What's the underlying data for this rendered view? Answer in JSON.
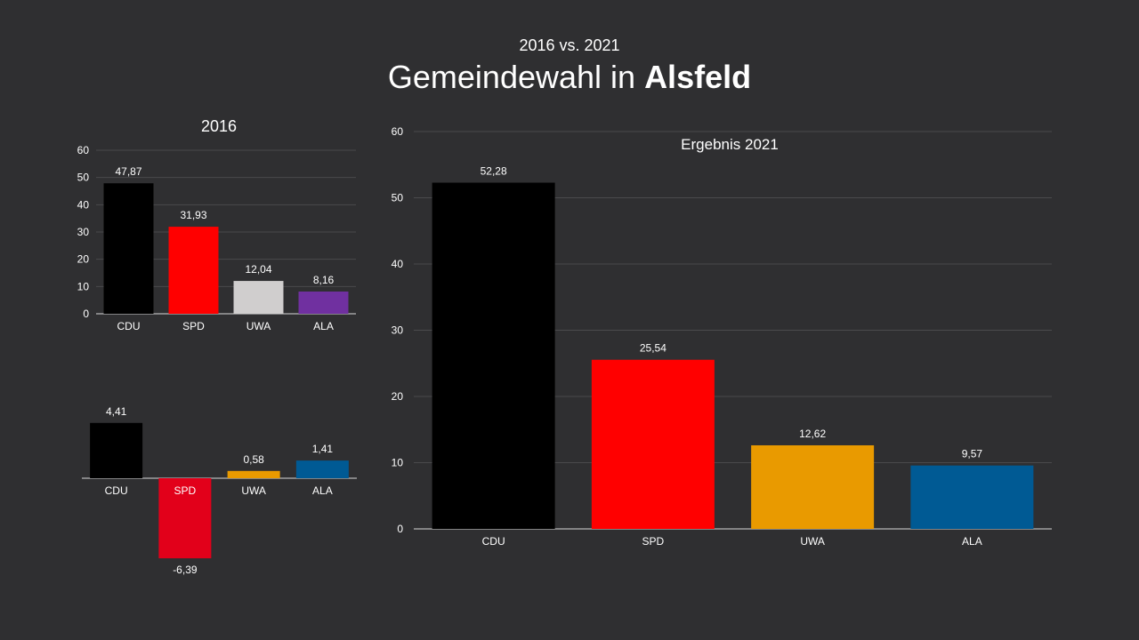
{
  "header": {
    "subtitle": "2016 vs. 2021",
    "title_prefix": "Gemeindewahl  in ",
    "title_bold": "Alsfeld"
  },
  "chart_data": [
    {
      "id": "chart2016",
      "type": "bar",
      "title": "2016",
      "categories": [
        "CDU",
        "SPD",
        "UWA",
        "ALA"
      ],
      "values": [
        47.87,
        31.93,
        12.04,
        8.16
      ],
      "labels": [
        "47,87",
        "31,93",
        "12,04",
        "8,16"
      ],
      "colors": [
        "#000000",
        "#ff0000",
        "#d0cece",
        "#7030a0"
      ],
      "ylim": [
        0,
        60
      ],
      "yticks": [
        0,
        10,
        20,
        30,
        40,
        50,
        60
      ],
      "grid": true
    },
    {
      "id": "chartDiff",
      "type": "bar",
      "title": "",
      "categories": [
        "CDU",
        "SPD",
        "UWA",
        "ALA"
      ],
      "values": [
        4.41,
        -6.39,
        0.58,
        1.41
      ],
      "labels": [
        "4,41",
        "-6,39",
        "0,58",
        "1,41"
      ],
      "colors": [
        "#000000",
        "#e2001a",
        "#e99a00",
        "#005a94"
      ],
      "grid": false
    },
    {
      "id": "chart2021",
      "type": "bar",
      "title": "Ergebnis 2021",
      "categories": [
        "CDU",
        "SPD",
        "UWA",
        "ALA"
      ],
      "values": [
        52.28,
        25.54,
        12.62,
        9.57
      ],
      "labels": [
        "52,28",
        "25,54",
        "12,62",
        "9,57"
      ],
      "colors": [
        "#000000",
        "#ff0000",
        "#e99a00",
        "#005a94"
      ],
      "ylim": [
        0,
        60
      ],
      "yticks": [
        0,
        10,
        20,
        30,
        40,
        50,
        60
      ],
      "grid": true
    }
  ]
}
